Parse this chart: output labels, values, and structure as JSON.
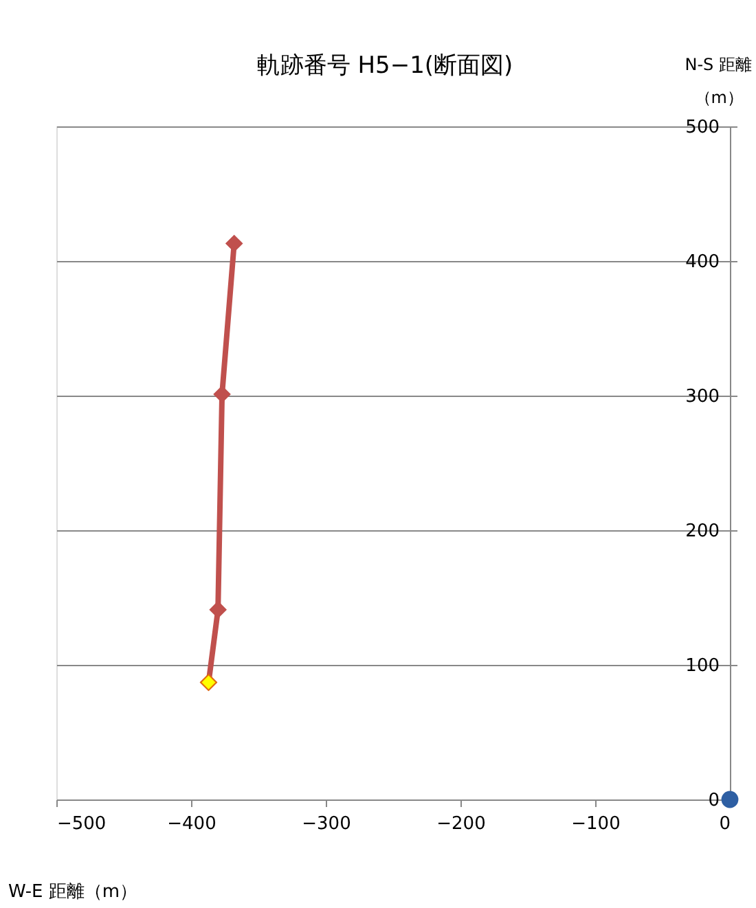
{
  "chart_data": {
    "type": "line",
    "title": "軌跡番号 H5−1(断面図)",
    "xlabel": "W-E 距離（m）",
    "ylabel": [
      "N-S 距離",
      "（m）"
    ],
    "xlim": [
      -500,
      0
    ],
    "xticks": [
      -500,
      -400,
      -300,
      -200,
      -100,
      0
    ],
    "ylim": [
      0,
      500
    ],
    "yticks": [
      0,
      100,
      200,
      300,
      400,
      500
    ],
    "grid": "y",
    "legend": false,
    "series": [
      {
        "type": "line",
        "color": "#c0504d",
        "marker": "diamond",
        "x": [
          -387,
          -380,
          -377,
          -368
        ],
        "values": [
          87,
          141,
          301,
          413
        ]
      },
      {
        "type": "scatter",
        "color": "#ffff00",
        "marker": "diamond",
        "x": [
          -387
        ],
        "values": [
          87
        ]
      },
      {
        "type": "scatter",
        "color": "#2e5fa3",
        "marker": "circle",
        "x": [
          0
        ],
        "values": [
          0
        ]
      }
    ]
  }
}
